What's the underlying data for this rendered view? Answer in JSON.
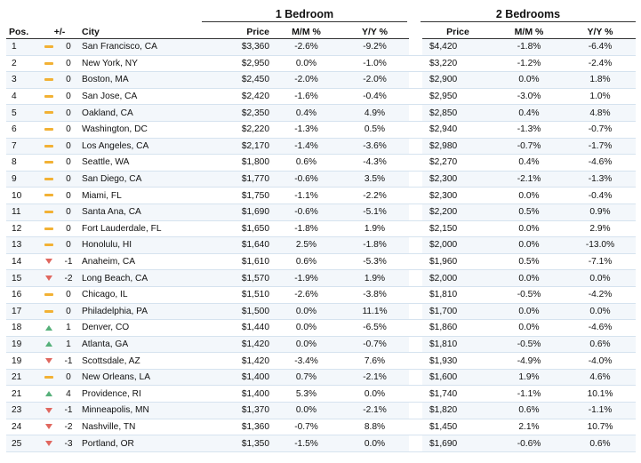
{
  "headers": {
    "group1": "1 Bedroom",
    "group2": "2 Bedrooms",
    "pos": "Pos.",
    "change": "+/-",
    "city": "City",
    "price": "Price",
    "mm": "M/M %",
    "yy": "Y/Y %"
  },
  "colors": {
    "flat": "#f2b134",
    "up": "#56b07a",
    "down": "#e0675f"
  },
  "rows": [
    {
      "pos": "1",
      "trend": "flat",
      "change": "0",
      "city": "San Francisco, CA",
      "p1": "$3,360",
      "mm1": "-2.6%",
      "yy1": "-9.2%",
      "p2": "$4,420",
      "mm2": "-1.8%",
      "yy2": "-6.4%"
    },
    {
      "pos": "2",
      "trend": "flat",
      "change": "0",
      "city": "New York, NY",
      "p1": "$2,950",
      "mm1": "0.0%",
      "yy1": "-1.0%",
      "p2": "$3,220",
      "mm2": "-1.2%",
      "yy2": "-2.4%"
    },
    {
      "pos": "3",
      "trend": "flat",
      "change": "0",
      "city": "Boston, MA",
      "p1": "$2,450",
      "mm1": "-2.0%",
      "yy1": "-2.0%",
      "p2": "$2,900",
      "mm2": "0.0%",
      "yy2": "1.8%"
    },
    {
      "pos": "4",
      "trend": "flat",
      "change": "0",
      "city": "San Jose, CA",
      "p1": "$2,420",
      "mm1": "-1.6%",
      "yy1": "-0.4%",
      "p2": "$2,950",
      "mm2": "-3.0%",
      "yy2": "1.0%"
    },
    {
      "pos": "5",
      "trend": "flat",
      "change": "0",
      "city": "Oakland, CA",
      "p1": "$2,350",
      "mm1": "0.4%",
      "yy1": "4.9%",
      "p2": "$2,850",
      "mm2": "0.4%",
      "yy2": "4.8%"
    },
    {
      "pos": "6",
      "trend": "flat",
      "change": "0",
      "city": "Washington, DC",
      "p1": "$2,220",
      "mm1": "-1.3%",
      "yy1": "0.5%",
      "p2": "$2,940",
      "mm2": "-1.3%",
      "yy2": "-0.7%"
    },
    {
      "pos": "7",
      "trend": "flat",
      "change": "0",
      "city": "Los Angeles, CA",
      "p1": "$2,170",
      "mm1": "-1.4%",
      "yy1": "-3.6%",
      "p2": "$2,980",
      "mm2": "-0.7%",
      "yy2": "-1.7%"
    },
    {
      "pos": "8",
      "trend": "flat",
      "change": "0",
      "city": "Seattle, WA",
      "p1": "$1,800",
      "mm1": "0.6%",
      "yy1": "-4.3%",
      "p2": "$2,270",
      "mm2": "0.4%",
      "yy2": "-4.6%"
    },
    {
      "pos": "9",
      "trend": "flat",
      "change": "0",
      "city": "San Diego, CA",
      "p1": "$1,770",
      "mm1": "-0.6%",
      "yy1": "3.5%",
      "p2": "$2,300",
      "mm2": "-2.1%",
      "yy2": "-1.3%"
    },
    {
      "pos": "10",
      "trend": "flat",
      "change": "0",
      "city": "Miami, FL",
      "p1": "$1,750",
      "mm1": "-1.1%",
      "yy1": "-2.2%",
      "p2": "$2,300",
      "mm2": "0.0%",
      "yy2": "-0.4%"
    },
    {
      "pos": "11",
      "trend": "flat",
      "change": "0",
      "city": "Santa Ana, CA",
      "p1": "$1,690",
      "mm1": "-0.6%",
      "yy1": "-5.1%",
      "p2": "$2,200",
      "mm2": "0.5%",
      "yy2": "0.9%"
    },
    {
      "pos": "12",
      "trend": "flat",
      "change": "0",
      "city": "Fort Lauderdale, FL",
      "p1": "$1,650",
      "mm1": "-1.8%",
      "yy1": "1.9%",
      "p2": "$2,150",
      "mm2": "0.0%",
      "yy2": "2.9%"
    },
    {
      "pos": "13",
      "trend": "flat",
      "change": "0",
      "city": "Honolulu, HI",
      "p1": "$1,640",
      "mm1": "2.5%",
      "yy1": "-1.8%",
      "p2": "$2,000",
      "mm2": "0.0%",
      "yy2": "-13.0%"
    },
    {
      "pos": "14",
      "trend": "down",
      "change": "-1",
      "city": "Anaheim, CA",
      "p1": "$1,610",
      "mm1": "0.6%",
      "yy1": "-5.3%",
      "p2": "$1,960",
      "mm2": "0.5%",
      "yy2": "-7.1%"
    },
    {
      "pos": "15",
      "trend": "down",
      "change": "-2",
      "city": "Long Beach, CA",
      "p1": "$1,570",
      "mm1": "-1.9%",
      "yy1": "1.9%",
      "p2": "$2,000",
      "mm2": "0.0%",
      "yy2": "0.0%"
    },
    {
      "pos": "16",
      "trend": "flat",
      "change": "0",
      "city": "Chicago, IL",
      "p1": "$1,510",
      "mm1": "-2.6%",
      "yy1": "-3.8%",
      "p2": "$1,810",
      "mm2": "-0.5%",
      "yy2": "-4.2%"
    },
    {
      "pos": "17",
      "trend": "flat",
      "change": "0",
      "city": "Philadelphia, PA",
      "p1": "$1,500",
      "mm1": "0.0%",
      "yy1": "11.1%",
      "p2": "$1,700",
      "mm2": "0.0%",
      "yy2": "0.0%"
    },
    {
      "pos": "18",
      "trend": "up",
      "change": "1",
      "city": "Denver, CO",
      "p1": "$1,440",
      "mm1": "0.0%",
      "yy1": "-6.5%",
      "p2": "$1,860",
      "mm2": "0.0%",
      "yy2": "-4.6%"
    },
    {
      "pos": "19",
      "trend": "up",
      "change": "1",
      "city": "Atlanta, GA",
      "p1": "$1,420",
      "mm1": "0.0%",
      "yy1": "-0.7%",
      "p2": "$1,810",
      "mm2": "-0.5%",
      "yy2": "0.6%"
    },
    {
      "pos": "19",
      "trend": "down",
      "change": "-1",
      "city": "Scottsdale, AZ",
      "p1": "$1,420",
      "mm1": "-3.4%",
      "yy1": "7.6%",
      "p2": "$1,930",
      "mm2": "-4.9%",
      "yy2": "-4.0%"
    },
    {
      "pos": "21",
      "trend": "flat",
      "change": "0",
      "city": "New Orleans, LA",
      "p1": "$1,400",
      "mm1": "0.7%",
      "yy1": "-2.1%",
      "p2": "$1,600",
      "mm2": "1.9%",
      "yy2": "4.6%"
    },
    {
      "pos": "21",
      "trend": "up",
      "change": "4",
      "city": "Providence, RI",
      "p1": "$1,400",
      "mm1": "5.3%",
      "yy1": "0.0%",
      "p2": "$1,740",
      "mm2": "-1.1%",
      "yy2": "10.1%"
    },
    {
      "pos": "23",
      "trend": "down",
      "change": "-1",
      "city": "Minneapolis, MN",
      "p1": "$1,370",
      "mm1": "0.0%",
      "yy1": "-2.1%",
      "p2": "$1,820",
      "mm2": "0.6%",
      "yy2": "-1.1%"
    },
    {
      "pos": "24",
      "trend": "down",
      "change": "-2",
      "city": "Nashville, TN",
      "p1": "$1,360",
      "mm1": "-0.7%",
      "yy1": "8.8%",
      "p2": "$1,450",
      "mm2": "2.1%",
      "yy2": "10.7%"
    },
    {
      "pos": "25",
      "trend": "down",
      "change": "-3",
      "city": "Portland, OR",
      "p1": "$1,350",
      "mm1": "-1.5%",
      "yy1": "0.0%",
      "p2": "$1,690",
      "mm2": "-0.6%",
      "yy2": "0.6%"
    }
  ]
}
